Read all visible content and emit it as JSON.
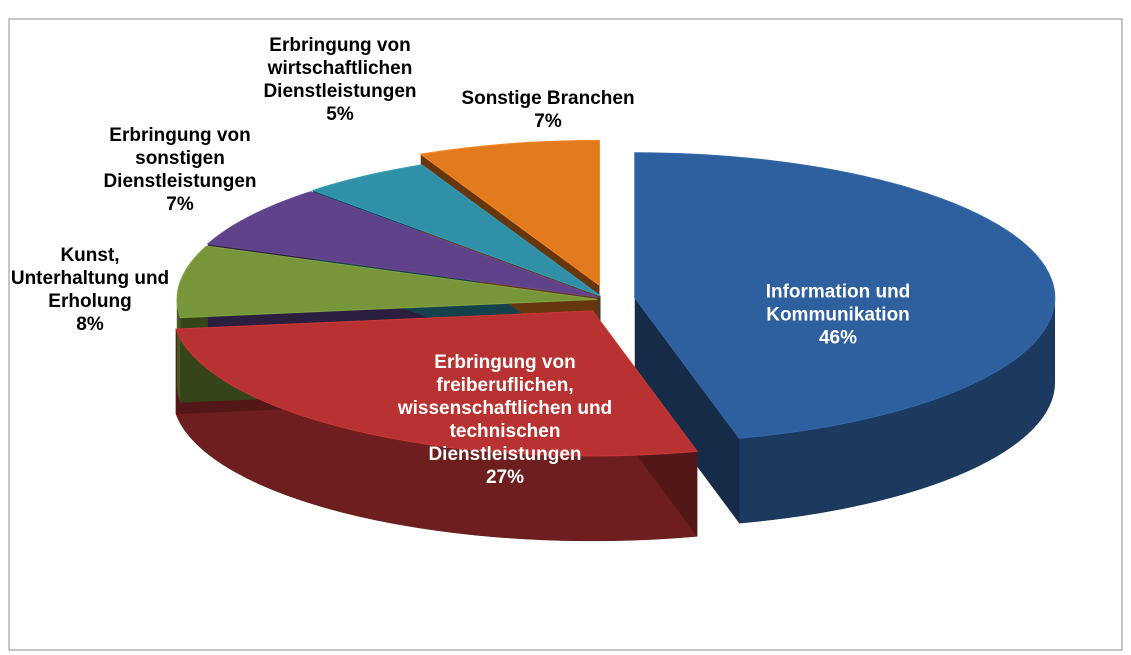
{
  "chart_data": {
    "type": "pie",
    "categories": [
      "Information und Kommunikation",
      "Erbringung von freiberuflichen, wissenschaftlichen und technischen Dienstleistungen",
      "Kunst, Unterhaltung und Erholung",
      "Erbringung von sonstigen Dienstleistungen",
      "Erbringung von wirtschaftlichen Dienstleistungen",
      "Sonstige Branchen"
    ],
    "values": [
      46,
      27,
      8,
      7,
      5,
      7
    ],
    "value_labels": [
      "46%",
      "27%",
      "8%",
      "7%",
      "5%",
      "7%"
    ],
    "colors": [
      "#2e5f9e",
      "#b83232",
      "#77963a",
      "#60428a",
      "#2f90a8",
      "#e27a1e"
    ]
  }
}
